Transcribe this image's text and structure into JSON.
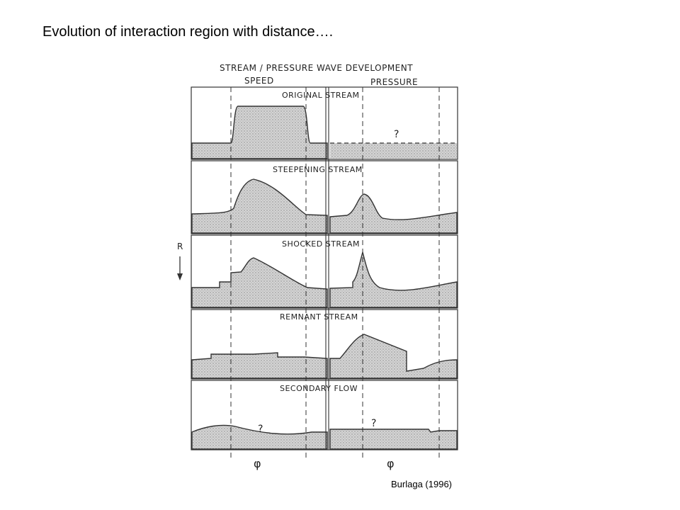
{
  "slide": {
    "title": "Evolution of interaction region with distance….",
    "credit": "Burlaga (1996)"
  },
  "figure": {
    "header": "STREAM / PRESSURE WAVE DEVELOPMENT",
    "speed_label": "SPEED",
    "pressure_label": "PRESSURE",
    "axis_label": "R",
    "phi_symbol": "φ",
    "question_mark": "?",
    "panels": [
      {
        "id": "original",
        "title": "ORIGINAL STREAM"
      },
      {
        "id": "steepening",
        "title": "STEEPENING STREAM"
      },
      {
        "id": "shocked",
        "title": "SHOCKED STREAM"
      },
      {
        "id": "remnant",
        "title": "REMNANT STREAM"
      },
      {
        "id": "secondary",
        "title": "SECONDARY FLOW"
      }
    ]
  }
}
